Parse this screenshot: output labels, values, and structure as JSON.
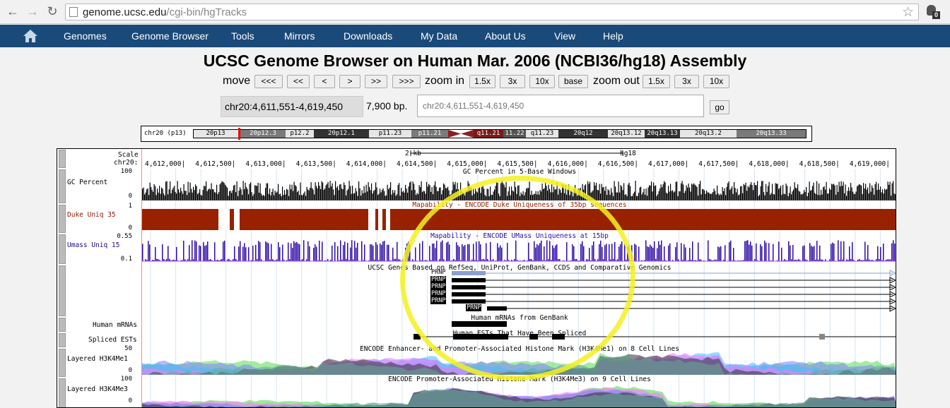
{
  "browser": {
    "url_host": "genome.ucsc.edu",
    "url_path": "/cgi-bin/hgTracks",
    "extension_badge": "0"
  },
  "nav": {
    "items": [
      "Genomes",
      "Genome Browser",
      "Tools",
      "Mirrors",
      "Downloads",
      "My Data",
      "About Us",
      "View",
      "Help"
    ]
  },
  "page": {
    "title": "UCSC Genome Browser on Human Mar. 2006 (NCBI36/hg18) Assembly",
    "move_label": "move",
    "move_buttons": [
      "<<<",
      "<<",
      "<",
      ">",
      ">>",
      ">>>"
    ],
    "zoom_in_label": "zoom in",
    "zoom_in_buttons": [
      "1.5x",
      "3x",
      "10x",
      "base"
    ],
    "zoom_out_label": "zoom out",
    "zoom_out_buttons": [
      "1.5x",
      "3x",
      "10x"
    ],
    "position": "chr20:4,611,551-4,619,450",
    "bp_label": "7,900 bp.",
    "position_input_placeholder": "chr20:4,611,551-4,619,450",
    "go_label": "go"
  },
  "ideogram": {
    "label": "chr20 (p13)",
    "bands": [
      {
        "name": "20p13",
        "color": "#e6e6e6",
        "text": "#000"
      },
      {
        "name": "20p12.3",
        "color": "#7a7a7a",
        "text": "#fff"
      },
      {
        "name": "p12.2",
        "color": "#e6e6e6",
        "text": "#000"
      },
      {
        "name": "20p12.1",
        "color": "#333333",
        "text": "#fff"
      },
      {
        "name": "p11.23",
        "color": "#e6e6e6",
        "text": "#000"
      },
      {
        "name": "p11.21",
        "color": "#7a7a7a",
        "text": "#fff"
      },
      {
        "name": "q11.21",
        "color": "#7a1a1a",
        "text": "#fff"
      },
      {
        "name": "11.22",
        "color": "#555555",
        "text": "#fff"
      },
      {
        "name": "q11.23",
        "color": "#e6e6e6",
        "text": "#000"
      },
      {
        "name": "20q12",
        "color": "#333333",
        "text": "#fff"
      },
      {
        "name": "20q13.12",
        "color": "#e6e6e6",
        "text": "#000"
      },
      {
        "name": "20q13.13",
        "color": "#333333",
        "text": "#fff"
      },
      {
        "name": "20q13.2",
        "color": "#e6e6e6",
        "text": "#000"
      },
      {
        "name": "20q13.33",
        "color": "#7a7a7a",
        "text": "#fff"
      }
    ]
  },
  "tracks": {
    "scale_label": "Scale",
    "chr_label": "chr20:",
    "scale_bar": "2 kb",
    "assembly": "hg18",
    "ruler_positions": [
      "4,612,000|",
      "4,612,500|",
      "4,613,000|",
      "4,613,500|",
      "4,614,000|",
      "4,614,500|",
      "4,615,000|",
      "4,615,500|",
      "4,616,000|",
      "4,616,500|",
      "4,617,000|",
      "4,617,500|",
      "4,618,000|",
      "4,618,500|",
      "4,619,000|"
    ],
    "gc": {
      "label": "GC Percent",
      "title": "GC Percent in 5-Base Windows",
      "max": "100",
      "min": "0",
      "color": "#000000"
    },
    "duke": {
      "label": "Duke Uniq 35",
      "title": "Mapability - ENCODE Duke Uniqueness of 35bp sequences",
      "max": "1",
      "min": "0",
      "color": "#982200"
    },
    "umass": {
      "label": "Umass Uniq 15",
      "title": "Mapability - ENCODE UMass Uniqueness at 15bp",
      "max": "0.55",
      "min": "0.1",
      "color": "#2e0ba8"
    },
    "ucsc_genes": {
      "title": "UCSC Genes Based on RefSeq, UniProt, GenBank, CCDS and Comparative Genomics",
      "gene_names": [
        "PRNP",
        "PRNP",
        "PRNP",
        "PRNP",
        "PRNP",
        "PRNP"
      ]
    },
    "mrna": {
      "label": "Human mRNAs",
      "title": "Human mRNAs from GenBank"
    },
    "est": {
      "label": "Spliced ESTs",
      "title": "Human ESTs That Have Been Spliced"
    },
    "h3k4me1": {
      "label": "Layered H3K4Me1",
      "title": "ENCODE Enhancer- and Promoter-Associated Histone Mark (H3K4Me1) on 8 Cell Lines",
      "max": "50",
      "min": "0"
    },
    "h3k4me3": {
      "label": "Layered H3K4Me3",
      "title": "ENCODE Promoter-Associated Histone Mark (H3K4Me3) on 9 Cell Lines",
      "max": "100",
      "min": "0"
    }
  }
}
